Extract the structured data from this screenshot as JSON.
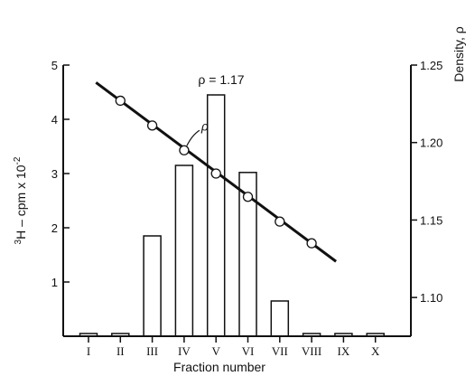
{
  "chart_data": {
    "type": "bar",
    "categories": [
      "I",
      "II",
      "III",
      "IV",
      "V",
      "VI",
      "VII",
      "VIII",
      "IX",
      "X"
    ],
    "values": [
      0.05,
      0.05,
      1.85,
      3.15,
      4.45,
      3.02,
      0.65,
      0.05,
      0.05,
      0.05
    ],
    "xlabel": "Fraction number",
    "ylabel_prefix": "3",
    "ylabel_main": "H – cpm x 10",
    "ylabel_exp": "-2",
    "ylim": [
      0,
      5
    ],
    "yticks": [
      "1",
      "2",
      "3",
      "4",
      "5"
    ],
    "y2label": "Density,  ρ",
    "y2lim": [
      1.075,
      1.25
    ],
    "y2ticks": [
      "1.10",
      "1.15",
      "1.20",
      "1.25"
    ],
    "density_series": {
      "name": "ρ",
      "x": [
        "II",
        "III",
        "IV",
        "V",
        "VI",
        "VII",
        "VIII"
      ],
      "values": [
        1.227,
        1.211,
        1.195,
        1.18,
        1.165,
        1.149,
        1.135
      ]
    },
    "annotation": "ρ = 1.17"
  }
}
